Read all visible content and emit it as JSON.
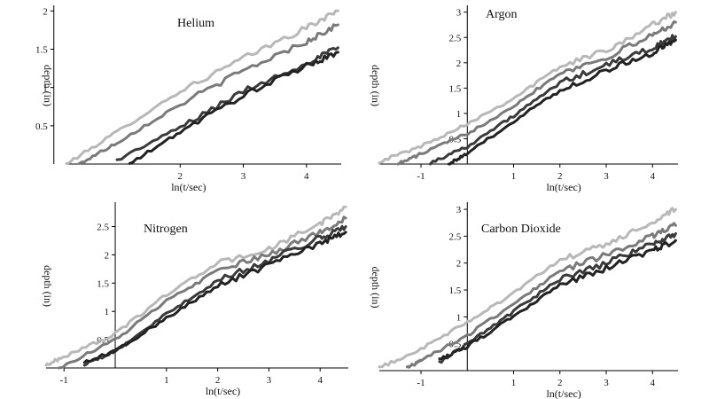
{
  "chart_data": [
    {
      "type": "line",
      "title": "Helium",
      "xlabel": "ln(t/sec)",
      "ylabel": "depth (in)",
      "ylabel_flipped": true,
      "xlim": [
        0.2,
        4.55
      ],
      "ylim": [
        0,
        2.05
      ],
      "xticks": [
        2,
        3,
        4
      ],
      "yticks": [
        0.5,
        1,
        1.5,
        2
      ],
      "ytick_labels": [
        "0.5",
        "1",
        "1.5",
        "2"
      ],
      "grid": false,
      "series": [
        {
          "color": "#b8b8b8",
          "values": [
            [
              0.2,
              0.0
            ],
            [
              1.0,
              0.42
            ],
            [
              2.0,
              0.95
            ],
            [
              3.0,
              1.38
            ],
            [
              4.0,
              1.78
            ],
            [
              4.5,
              2.0
            ]
          ]
        },
        {
          "color": "#7a7a7a",
          "values": [
            [
              0.4,
              0.0
            ],
            [
              1.0,
              0.28
            ],
            [
              2.0,
              0.78
            ],
            [
              3.0,
              1.22
            ],
            [
              4.0,
              1.6
            ],
            [
              4.5,
              1.82
            ]
          ]
        },
        {
          "color": "#3a3a3a",
          "values": [
            [
              1.0,
              0.05
            ],
            [
              2.0,
              0.48
            ],
            [
              3.0,
              0.95
            ],
            [
              4.0,
              1.32
            ],
            [
              4.5,
              1.52
            ]
          ]
        },
        {
          "color": "#222222",
          "values": [
            [
              1.2,
              0.0
            ],
            [
              2.0,
              0.42
            ],
            [
              3.0,
              0.9
            ],
            [
              4.0,
              1.28
            ],
            [
              4.5,
              1.46
            ]
          ]
        }
      ]
    },
    {
      "type": "line",
      "title": "Argon",
      "xlabel": "ln(t/sec)",
      "ylabel": "depth (in)",
      "ylabel_flipped": false,
      "xlim": [
        -1.9,
        4.55
      ],
      "ylim": [
        0,
        3.1
      ],
      "xticks": [
        -1,
        1,
        2,
        3,
        4
      ],
      "yticks": [
        0.5,
        1,
        1.5,
        2,
        2.5,
        3
      ],
      "ytick_labels": [
        "0.5",
        "1",
        "1.5",
        "2",
        "2.5",
        "3"
      ],
      "grid": false,
      "series": [
        {
          "color": "#b8b8b8",
          "values": [
            [
              -1.9,
              0.05
            ],
            [
              -1.0,
              0.35
            ],
            [
              0.0,
              0.8
            ],
            [
              1.0,
              1.3
            ],
            [
              2.0,
              1.92
            ],
            [
              3.0,
              2.25
            ],
            [
              4.0,
              2.75
            ],
            [
              4.5,
              3.0
            ]
          ]
        },
        {
          "color": "#7a7a7a",
          "values": [
            [
              -1.5,
              0.0
            ],
            [
              -1.0,
              0.2
            ],
            [
              0.0,
              0.6
            ],
            [
              1.0,
              1.15
            ],
            [
              2.0,
              1.8
            ],
            [
              3.0,
              2.1
            ],
            [
              4.0,
              2.55
            ],
            [
              4.5,
              2.8
            ]
          ]
        },
        {
          "color": "#3a3a3a",
          "values": [
            [
              -0.8,
              0.02
            ],
            [
              0.0,
              0.35
            ],
            [
              1.0,
              0.95
            ],
            [
              2.0,
              1.6
            ],
            [
              3.0,
              1.95
            ],
            [
              4.0,
              2.3
            ],
            [
              4.5,
              2.52
            ]
          ]
        },
        {
          "color": "#222222",
          "values": [
            [
              -0.4,
              0.0
            ],
            [
              0.0,
              0.2
            ],
            [
              1.0,
              0.85
            ],
            [
              2.0,
              1.45
            ],
            [
              3.0,
              1.85
            ],
            [
              4.0,
              2.2
            ],
            [
              4.5,
              2.45
            ]
          ]
        }
      ]
    },
    {
      "type": "line",
      "title": "Nitrogen",
      "xlabel": "ln(t/sec)",
      "ylabel": "depth (in)",
      "ylabel_flipped": true,
      "xlim": [
        -1.35,
        4.55
      ],
      "ylim": [
        0,
        2.9
      ],
      "xticks": [
        -1,
        1,
        2,
        3,
        4
      ],
      "yticks": [
        0.5,
        1,
        1.5,
        2,
        2.5
      ],
      "ytick_labels": [
        "0.5",
        "1",
        "1.5",
        "2",
        "2.5"
      ],
      "grid": false,
      "series": [
        {
          "color": "#b8b8b8",
          "values": [
            [
              -1.35,
              0.05
            ],
            [
              -1.0,
              0.2
            ],
            [
              0.0,
              0.6
            ],
            [
              1.0,
              1.3
            ],
            [
              2.0,
              1.85
            ],
            [
              3.0,
              2.1
            ],
            [
              4.0,
              2.55
            ],
            [
              4.5,
              2.85
            ]
          ]
        },
        {
          "color": "#7a7a7a",
          "values": [
            [
              -1.1,
              0.0
            ],
            [
              0.0,
              0.5
            ],
            [
              1.0,
              1.18
            ],
            [
              2.0,
              1.72
            ],
            [
              3.0,
              2.0
            ],
            [
              4.0,
              2.4
            ],
            [
              4.5,
              2.65
            ]
          ]
        },
        {
          "color": "#3a3a3a",
          "values": [
            [
              -0.6,
              0.05
            ],
            [
              0.0,
              0.3
            ],
            [
              1.0,
              0.95
            ],
            [
              2.0,
              1.55
            ],
            [
              3.0,
              1.9
            ],
            [
              4.0,
              2.3
            ],
            [
              4.5,
              2.5
            ]
          ]
        },
        {
          "color": "#222222",
          "values": [
            [
              -0.6,
              0.1
            ],
            [
              0.0,
              0.3
            ],
            [
              1.0,
              0.88
            ],
            [
              2.0,
              1.45
            ],
            [
              3.0,
              1.82
            ],
            [
              4.0,
              2.2
            ],
            [
              4.5,
              2.4
            ]
          ]
        }
      ]
    },
    {
      "type": "line",
      "title": "Carbon Dioxide",
      "xlabel": "ln(t/sec)",
      "ylabel": "depth (in)",
      "ylabel_flipped": false,
      "xlim": [
        -1.9,
        4.55
      ],
      "ylim": [
        0,
        3.1
      ],
      "xticks": [
        -1,
        1,
        2,
        3,
        4
      ],
      "yticks": [
        0.5,
        1,
        1.5,
        2,
        2.5,
        3
      ],
      "ytick_labels": [
        "0.5",
        "1",
        "1.5",
        "2",
        "2.5",
        "3"
      ],
      "grid": false,
      "series": [
        {
          "color": "#b8b8b8",
          "values": [
            [
              -1.9,
              0.05
            ],
            [
              -1.0,
              0.4
            ],
            [
              0.0,
              0.9
            ],
            [
              1.0,
              1.45
            ],
            [
              2.0,
              2.05
            ],
            [
              3.0,
              2.35
            ],
            [
              4.0,
              2.75
            ],
            [
              4.5,
              3.0
            ]
          ]
        },
        {
          "color": "#7a7a7a",
          "values": [
            [
              -1.3,
              0.05
            ],
            [
              -1.0,
              0.2
            ],
            [
              0.0,
              0.65
            ],
            [
              1.0,
              1.25
            ],
            [
              2.0,
              1.85
            ],
            [
              3.0,
              2.15
            ],
            [
              4.0,
              2.5
            ],
            [
              4.5,
              2.7
            ]
          ]
        },
        {
          "color": "#3a3a3a",
          "values": [
            [
              -0.6,
              0.15
            ],
            [
              0.0,
              0.5
            ],
            [
              1.0,
              1.1
            ],
            [
              2.0,
              1.7
            ],
            [
              3.0,
              2.0
            ],
            [
              4.0,
              2.35
            ],
            [
              4.5,
              2.55
            ]
          ]
        },
        {
          "color": "#222222",
          "values": [
            [
              -0.6,
              0.2
            ],
            [
              0.0,
              0.45
            ],
            [
              1.0,
              1.0
            ],
            [
              2.0,
              1.6
            ],
            [
              3.0,
              1.9
            ],
            [
              4.0,
              2.25
            ],
            [
              4.5,
              2.42
            ]
          ]
        }
      ]
    }
  ]
}
